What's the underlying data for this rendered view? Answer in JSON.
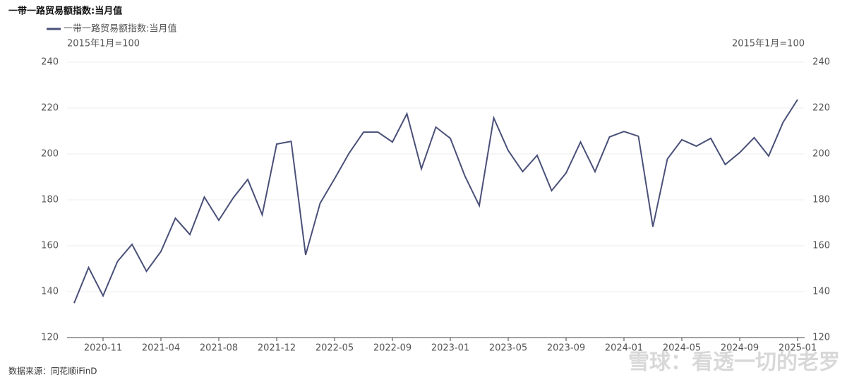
{
  "chart_data": {
    "type": "line",
    "title": "一带一路贸易额指数:当月值",
    "y_label": "2015年1月=100",
    "y2_label": "2015年1月=100",
    "source": "数据来源：同花顺iFinD",
    "watermark": "雪球：看透一切的老罗",
    "categories": [
      null,
      null,
      "2020-11",
      null,
      null,
      null,
      "2021-04",
      null,
      null,
      null,
      "2021-08",
      null,
      null,
      null,
      "2021-12",
      null,
      null,
      null,
      "2022-05",
      null,
      null,
      null,
      "2022-09",
      null,
      null,
      null,
      "2023-01",
      null,
      null,
      null,
      "2023-05",
      null,
      null,
      null,
      "2023-09",
      null,
      null,
      null,
      "2024-01",
      null,
      null,
      null,
      "2024-05",
      null,
      null,
      null,
      "2024-09",
      null,
      null,
      null,
      "2025-01"
    ],
    "series": [
      {
        "name": "一带一路贸易额指数:当月值",
        "color": "#4a5078",
        "values": [
          135,
          150.5,
          138.2,
          153.2,
          160.6,
          148.9,
          157.5,
          172,
          164.9,
          181.2,
          171.1,
          180.9,
          188.9,
          173.5,
          204.3,
          205.5,
          156,
          178.5,
          189.2,
          200.3,
          209.5,
          209.5,
          205.2,
          217.5,
          193.5,
          211.7,
          206.8,
          190.5,
          177.5,
          215.7,
          201.5,
          192.3,
          199.4,
          184,
          191.7,
          205.2,
          192.3,
          207.4,
          209.8,
          207.7,
          168.3,
          197.8,
          206.2,
          203.4,
          206.8,
          195.4,
          200.6,
          207.1,
          199.1,
          213.8,
          223.7
        ]
      }
    ],
    "ylim": [
      120,
      240
    ],
    "yticks": [
      120,
      140,
      160,
      180,
      200,
      220,
      240
    ],
    "y2lim": [
      120,
      240
    ],
    "y2ticks": [
      120,
      140,
      160,
      180,
      200,
      220,
      240
    ],
    "grid": true,
    "legend": "top-left"
  }
}
